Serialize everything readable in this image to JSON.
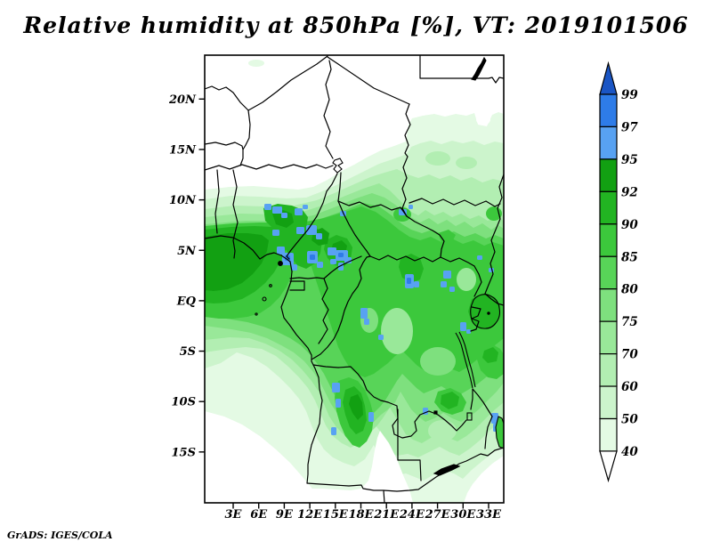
{
  "title": {
    "text": "Relative humidity at 850hPa [%], VT: 2019101506"
  },
  "credit": {
    "text": "GrADS: IGES/COLA"
  },
  "map": {
    "lat_ticks": [
      "20N",
      "15N",
      "10N",
      "5N",
      "EQ",
      "5S",
      "10S",
      "15S"
    ],
    "lon_ticks": [
      "3E",
      "6E",
      "9E",
      "12E",
      "15E",
      "18E",
      "21E",
      "24E",
      "27E",
      "30E",
      "33E"
    ]
  },
  "colorbar": {
    "labels": [
      "99",
      "97",
      "95",
      "92",
      "90",
      "85",
      "80",
      "75",
      "70",
      "60",
      "50",
      "40"
    ]
  },
  "palette": {
    "40": "#e4fae4",
    "50": "#ccf4cc",
    "60": "#b2eeb2",
    "70": "#99e899",
    "75": "#7ee07e",
    "80": "#58d458",
    "85": "#3cc83c",
    "90": "#22b422",
    "92": "#12a012",
    "95": "#58a2f2",
    "97": "#2e7ce8",
    "99": "#1a55c4",
    "below40": "#ffffff",
    "border": "#000000"
  },
  "chart_data": {
    "type": "heatmap",
    "title": "Relative humidity at 850hPa [%], VT: 2019101506",
    "variable": "Relative humidity",
    "pressure_level": "850hPa",
    "units": "%",
    "valid_time": "2019101506",
    "x_ticks": [
      "3E",
      "6E",
      "9E",
      "12E",
      "15E",
      "18E",
      "21E",
      "24E",
      "27E",
      "30E",
      "33E"
    ],
    "y_ticks": [
      "20N",
      "15N",
      "10N",
      "5N",
      "EQ",
      "5S",
      "10S",
      "15S"
    ],
    "lon_range": [
      "0E",
      "35E"
    ],
    "lat_range": [
      "20S",
      "24N"
    ],
    "shade_levels": [
      40,
      50,
      60,
      70,
      75,
      80,
      85,
      90,
      92,
      95,
      97,
      99
    ],
    "shade_colors": [
      "#e4fae4",
      "#ccf4cc",
      "#b2eeb2",
      "#99e899",
      "#7ee07e",
      "#58d458",
      "#3cc83c",
      "#22b422",
      "#12a012",
      "#58a2f2",
      "#2e7ce8",
      "#1a55c4"
    ],
    "legend_position": "right vertical colorbar with arrow caps",
    "grid": false,
    "features": [
      "White (RH below 40%) over the Sahara north of about 12N and over Chad/Niger",
      "Light green 40-70% over Sudan in the northeast, increasing southward",
      "Very moist band 85-95% along 0-8N from the Gulf of Guinea coast across Cameroon, CAR and South Sudan",
      "Darkest green core 92-95% on the Gulf of Guinea coast near Cameroon",
      "Blue patches above 95% over the Cameroon highlands, central DR Congo, the Rift lakes and interior Angola",
      "Moist tongue 80-92% over interior Angola and around Lake Victoria",
      "Drier air below 50% over the far southwest ocean corner, coastal Namibia strip and the far southeast",
      "Country borders and lakes (Chad, Victoria, Tanganyika, Malawi, Kariba) drawn in black"
    ]
  }
}
